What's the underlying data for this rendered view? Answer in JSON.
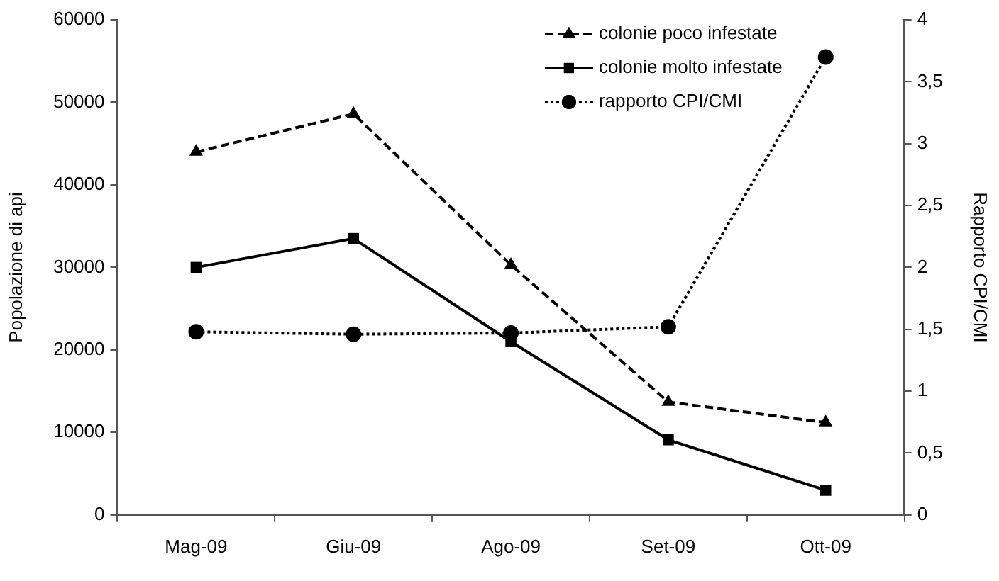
{
  "chart_data": {
    "type": "line",
    "ylabel": "Popolazione di api",
    "y2label": "Rapporto CPI/CMI",
    "categories": [
      "Mag-09",
      "Giu-09",
      "Ago-09",
      "Set-09",
      "Ott-09"
    ],
    "series": [
      {
        "name": "colonie poco infestate",
        "color": "#000000",
        "marker": "triangle",
        "line_style": "dashed",
        "values": [
          44000,
          48600,
          30300,
          13700,
          11200
        ]
      },
      {
        "name": "colonie molto infestate",
        "color": "#000000",
        "marker": "square",
        "line_style": "solid",
        "values": [
          30000,
          33500,
          21000,
          9100,
          3000
        ]
      },
      {
        "name": "rapporto CPI/CMI",
        "color": "#000000",
        "marker": "circle",
        "line_style": "dotted",
        "axis": "y2",
        "values": [
          1.48,
          1.46,
          1.47,
          1.52,
          3.7
        ]
      }
    ],
    "ylim": [
      0,
      60000
    ],
    "yticks": [
      0,
      10000,
      20000,
      30000,
      40000,
      50000,
      60000
    ],
    "y2lim": [
      0,
      4
    ],
    "y2ticks": [
      0,
      {
        "value": 0.5,
        "label": "0,5"
      },
      1,
      {
        "value": 1.5,
        "label": "1,5"
      },
      2,
      {
        "value": 2.5,
        "label": "2,5"
      },
      3,
      {
        "value": 3.5,
        "label": "3,5"
      },
      4
    ],
    "grid": false,
    "legend": "top right"
  }
}
